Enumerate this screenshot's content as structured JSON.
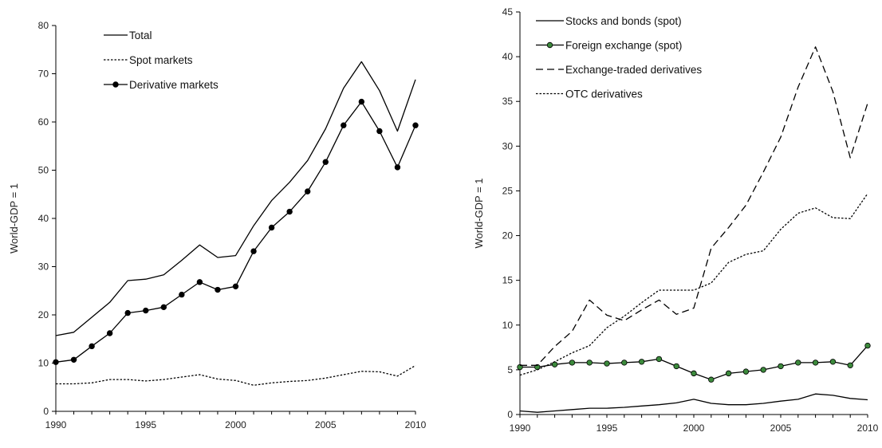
{
  "chart_data": [
    {
      "type": "line",
      "ylabel": "World-GDP = 1",
      "xlabel": "",
      "xlim": [
        1990,
        2010
      ],
      "ylim": [
        0,
        80
      ],
      "xticks": [
        "1990",
        "1995",
        "2000",
        "2005",
        "2010"
      ],
      "yticks": [
        "0",
        "10",
        "20",
        "30",
        "40",
        "50",
        "60",
        "70",
        "80"
      ],
      "grid": false,
      "legend": "top-left",
      "x": [
        1990,
        1991,
        1992,
        1993,
        1994,
        1995,
        1996,
        1997,
        1998,
        1999,
        2000,
        2001,
        2002,
        2003,
        2004,
        2005,
        2006,
        2007,
        2008,
        2009,
        2010
      ],
      "series": [
        {
          "name": "Total",
          "style": "solid",
          "marker": "none",
          "color": "#000000",
          "values": [
            15.7,
            16.4,
            19.5,
            22.6,
            27.1,
            27.4,
            28.3,
            31.3,
            34.5,
            31.9,
            32.3,
            38.5,
            43.7,
            47.5,
            52.0,
            58.6,
            67.0,
            72.5,
            66.5,
            58.1,
            68.8
          ]
        },
        {
          "name": "Spot markets",
          "style": "dotted",
          "marker": "none",
          "color": "#000000",
          "values": [
            5.7,
            5.7,
            5.9,
            6.6,
            6.6,
            6.3,
            6.6,
            7.1,
            7.6,
            6.7,
            6.4,
            5.4,
            5.9,
            6.2,
            6.4,
            6.9,
            7.6,
            8.3,
            8.2,
            7.3,
            9.5
          ]
        },
        {
          "name": "Derivative markets",
          "style": "solid",
          "marker": "dot",
          "color": "#000000",
          "markerColor": "#000000",
          "values": [
            10.2,
            10.7,
            13.5,
            16.2,
            20.4,
            20.9,
            21.6,
            24.2,
            26.8,
            25.2,
            25.9,
            33.2,
            38.1,
            41.4,
            45.6,
            51.7,
            59.3,
            64.2,
            58.1,
            50.6,
            59.3
          ]
        }
      ]
    },
    {
      "type": "line",
      "ylabel": "World-GDP = 1",
      "xlabel": "",
      "xlim": [
        1990,
        2010
      ],
      "ylim": [
        0,
        45
      ],
      "xticks": [
        "1990",
        "1995",
        "2000",
        "2005",
        "2010"
      ],
      "yticks": [
        "0",
        "5",
        "10",
        "15",
        "20",
        "25",
        "30",
        "35",
        "40",
        "45"
      ],
      "grid": false,
      "legend": "top-left",
      "x": [
        1990,
        1991,
        1992,
        1993,
        1994,
        1995,
        1996,
        1997,
        1998,
        1999,
        2000,
        2001,
        2002,
        2003,
        2004,
        2005,
        2006,
        2007,
        2008,
        2009,
        2010
      ],
      "series": [
        {
          "name": "Stocks and bonds (spot)",
          "style": "solid",
          "marker": "none",
          "color": "#000000",
          "values": [
            0.4,
            0.25,
            0.4,
            0.55,
            0.7,
            0.7,
            0.8,
            0.95,
            1.1,
            1.3,
            1.7,
            1.25,
            1.1,
            1.1,
            1.25,
            1.5,
            1.7,
            2.3,
            2.15,
            1.8,
            1.65
          ]
        },
        {
          "name": "Foreign exchange (spot)",
          "style": "solid",
          "marker": "dot",
          "color": "#000000",
          "markerColor": "#3c8a3c",
          "values": [
            5.3,
            5.3,
            5.6,
            5.8,
            5.8,
            5.7,
            5.8,
            5.9,
            6.2,
            5.4,
            4.6,
            3.9,
            4.6,
            4.8,
            5.0,
            5.4,
            5.8,
            5.8,
            5.9,
            5.5,
            7.7
          ]
        },
        {
          "name": "Exchange-traded derivatives",
          "style": "dashed",
          "marker": "none",
          "color": "#000000",
          "values": [
            5.5,
            5.5,
            7.6,
            9.3,
            12.8,
            11.1,
            10.5,
            11.7,
            12.8,
            11.2,
            11.9,
            18.6,
            20.9,
            23.4,
            27.1,
            31.0,
            36.6,
            41.1,
            36.1,
            28.7,
            34.8
          ]
        },
        {
          "name": "OTC derivatives",
          "style": "dotted",
          "marker": "none",
          "color": "#000000",
          "values": [
            4.4,
            5.0,
            5.9,
            6.9,
            7.7,
            9.7,
            11.0,
            12.5,
            13.9,
            13.9,
            13.9,
            14.7,
            17.0,
            17.9,
            18.3,
            20.7,
            22.5,
            23.1,
            22.0,
            21.9,
            24.7
          ]
        }
      ]
    }
  ]
}
